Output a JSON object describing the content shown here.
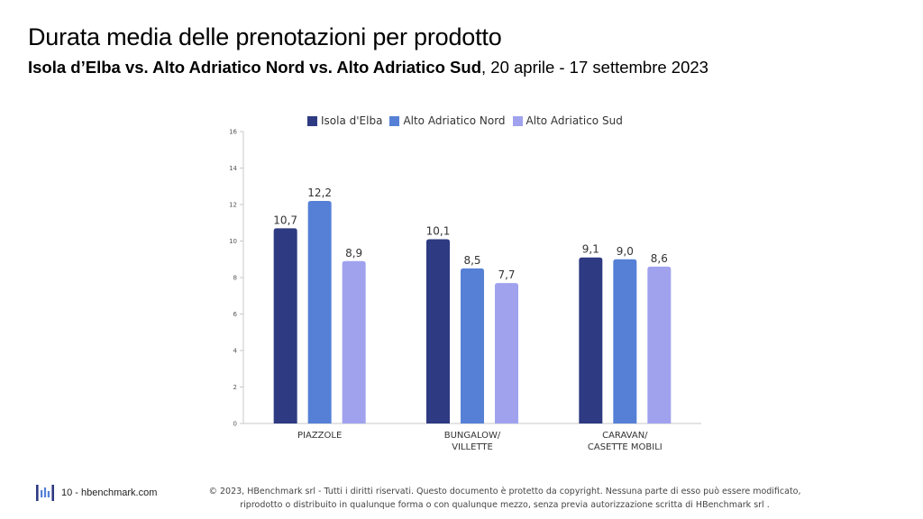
{
  "header": {
    "title": "Durata media delle prenotazioni per prodotto",
    "subtitle_bold": "Isola d’Elba vs. Alto Adriatico Nord vs. Alto Adriatico Sud",
    "subtitle_rest": ", 20 aprile - 17 settembre 2023"
  },
  "footer": {
    "page_label": "10 - hbenchmark.com",
    "copyright_line1": "© 2023, HBenchmark srl - Tutti i diritti riservati. Questo documento è protetto da copyright. Nessuna parte di esso può essere modificato,",
    "copyright_line2": "riprodotto o distribuito in qualunque forma o con qualunque mezzo, senza previa autorizzazione scritta di HBenchmark srl ."
  },
  "chart_data": {
    "type": "bar",
    "categories": [
      [
        "PIAZZOLE"
      ],
      [
        "BUNGALOW/",
        "VILLETTE"
      ],
      [
        "CARAVAN/",
        "CASETTE MOBILI"
      ]
    ],
    "series": [
      {
        "name": "Isola d'Elba",
        "values": [
          10.7,
          10.1,
          9.1
        ],
        "labels": [
          "10,7",
          "10,1",
          "9,1"
        ],
        "color": "#2e3a82"
      },
      {
        "name": "Alto Adriatico Nord",
        "values": [
          12.2,
          8.5,
          9.0
        ],
        "labels": [
          "12,2",
          "8,5",
          "9,0"
        ],
        "color": "#5580d6"
      },
      {
        "name": "Alto Adriatico Sud",
        "values": [
          8.9,
          7.7,
          8.6
        ],
        "labels": [
          "8,9",
          "7,7",
          "8,6"
        ],
        "color": "#a0a2ee"
      }
    ],
    "yticks": [
      0,
      2,
      4,
      6,
      8,
      10,
      12,
      14,
      16
    ],
    "ylim": [
      0,
      16
    ],
    "legend": "top",
    "grid": false
  }
}
